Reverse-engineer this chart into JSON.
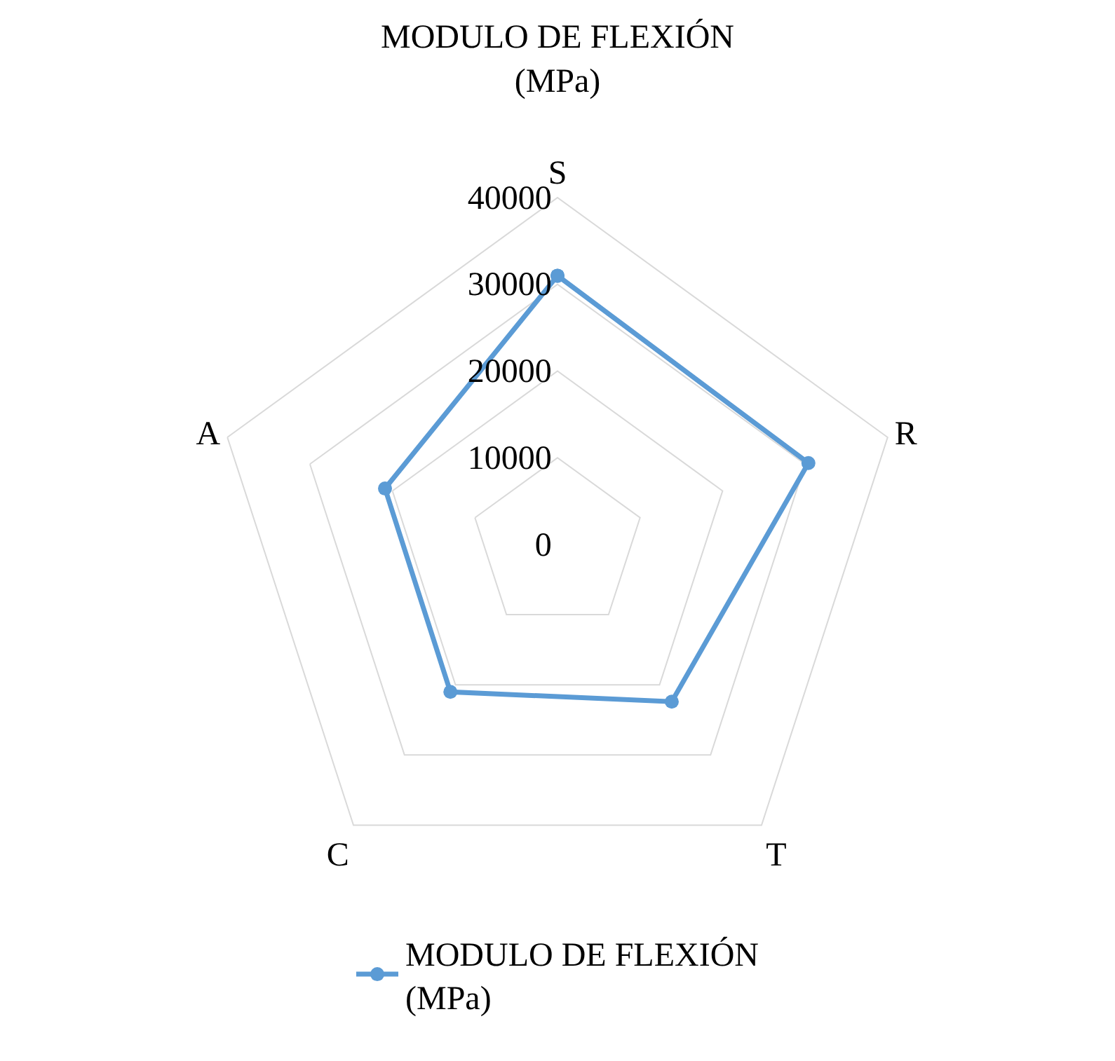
{
  "chart_data": {
    "type": "radar",
    "title": "MODULO DE FLEXIÓN\n(MPa)",
    "categories": [
      "S",
      "R",
      "T",
      "C",
      "A"
    ],
    "series": [
      {
        "name": "MODULO DE FLEXIÓN\n(MPa)",
        "color": "#5b9bd5",
        "values": [
          31000,
          30400,
          22400,
          21000,
          20900
        ]
      }
    ],
    "ylim": [
      0,
      40000
    ],
    "yticks": [
      0,
      10000,
      20000,
      30000,
      40000
    ],
    "grid": true,
    "legend": "bottom",
    "marker": "circle",
    "line_style": "solid"
  }
}
